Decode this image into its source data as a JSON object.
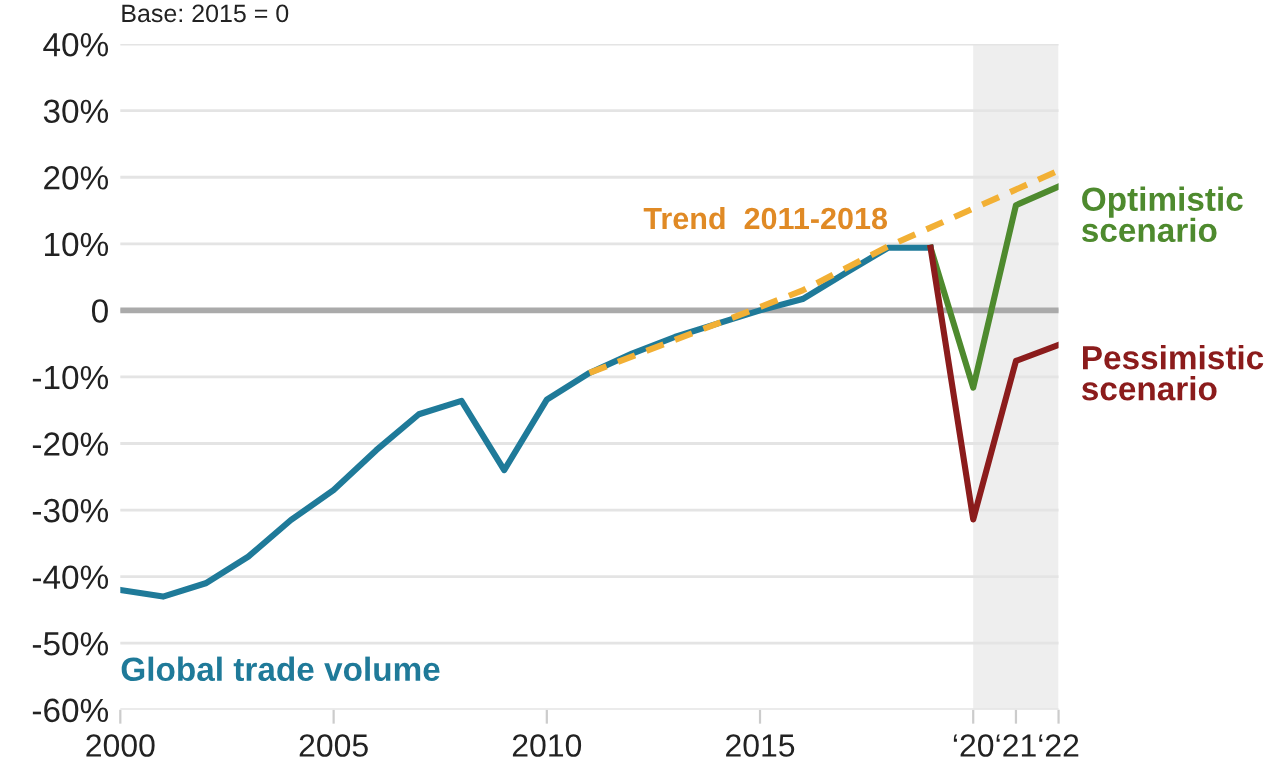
{
  "chart_data": {
    "type": "line",
    "annotations": [
      "Base: 2015 = 0"
    ],
    "series": [
      {
        "name": "Global trade volume",
        "color": "#1f7a99",
        "x": [
          "2000",
          "2001",
          "2002",
          "2003",
          "2004",
          "2005",
          "2006",
          "2007",
          "2008",
          "2009",
          "2010",
          "2011",
          "2012",
          "2013",
          "2014",
          "2015",
          "2016",
          "2017",
          "2018",
          "2019"
        ],
        "values": [
          -42,
          -43,
          -41,
          -37,
          -31.5,
          -27,
          -21,
          -15.6,
          -13.6,
          -24,
          -13.4,
          -9.4,
          -6.5,
          -4,
          -2,
          0,
          1.7,
          5.6,
          9.4,
          9.4
        ]
      },
      {
        "name": "Trend  2011-2018",
        "color": "#f2b035",
        "line_style": "dashed",
        "x": [
          "2011",
          "2015",
          "2016",
          "2018",
          "2022"
        ],
        "values": [
          -9.4,
          0.5,
          3,
          9.6,
          21
        ]
      },
      {
        "name": "Optimistic scenario",
        "color": "#4e8a2e",
        "x": [
          "2019",
          "2020",
          "2021",
          "2022"
        ],
        "values": [
          9.4,
          -11.6,
          15.8,
          18.6
        ]
      },
      {
        "name": "Pessimistic scenario",
        "color": "#8b1c1c",
        "x": [
          "2019",
          "2020",
          "2021",
          "2022"
        ],
        "values": [
          9.4,
          -31.4,
          -7.6,
          -5.2
        ]
      }
    ],
    "xlim": [
      "2000",
      "2022"
    ],
    "xticks": [
      {
        "value": "2000",
        "label": "2000"
      },
      {
        "value": "2005",
        "label": "2005"
      },
      {
        "value": "2010",
        "label": "2010"
      },
      {
        "value": "2015",
        "label": "2015"
      },
      {
        "value": "2020",
        "label": "‘20"
      },
      {
        "value": "2021",
        "label": "‘21"
      },
      {
        "value": "2022",
        "label": "‘22"
      }
    ],
    "ylim": [
      -60,
      40
    ],
    "yticks": [
      {
        "value": -60,
        "label": "-60%"
      },
      {
        "value": -50,
        "label": "-50%"
      },
      {
        "value": -40,
        "label": "-40%"
      },
      {
        "value": -30,
        "label": "-30%"
      },
      {
        "value": -20,
        "label": "-20%"
      },
      {
        "value": -10,
        "label": "-10%"
      },
      0,
      {
        "value": 10,
        "label": "10%"
      },
      {
        "value": 20,
        "label": "20%"
      },
      {
        "value": 30,
        "label": "30%"
      },
      {
        "value": 40,
        "label": "40%"
      }
    ],
    "grid": "y",
    "legend": false,
    "ref_lines": [
      {
        "axis": "y",
        "value": 0,
        "color": "#aaaaaa"
      }
    ],
    "bands": [
      {
        "axis": "x",
        "from": "2020",
        "to": "2022",
        "color": "#eeeeee"
      }
    ]
  }
}
